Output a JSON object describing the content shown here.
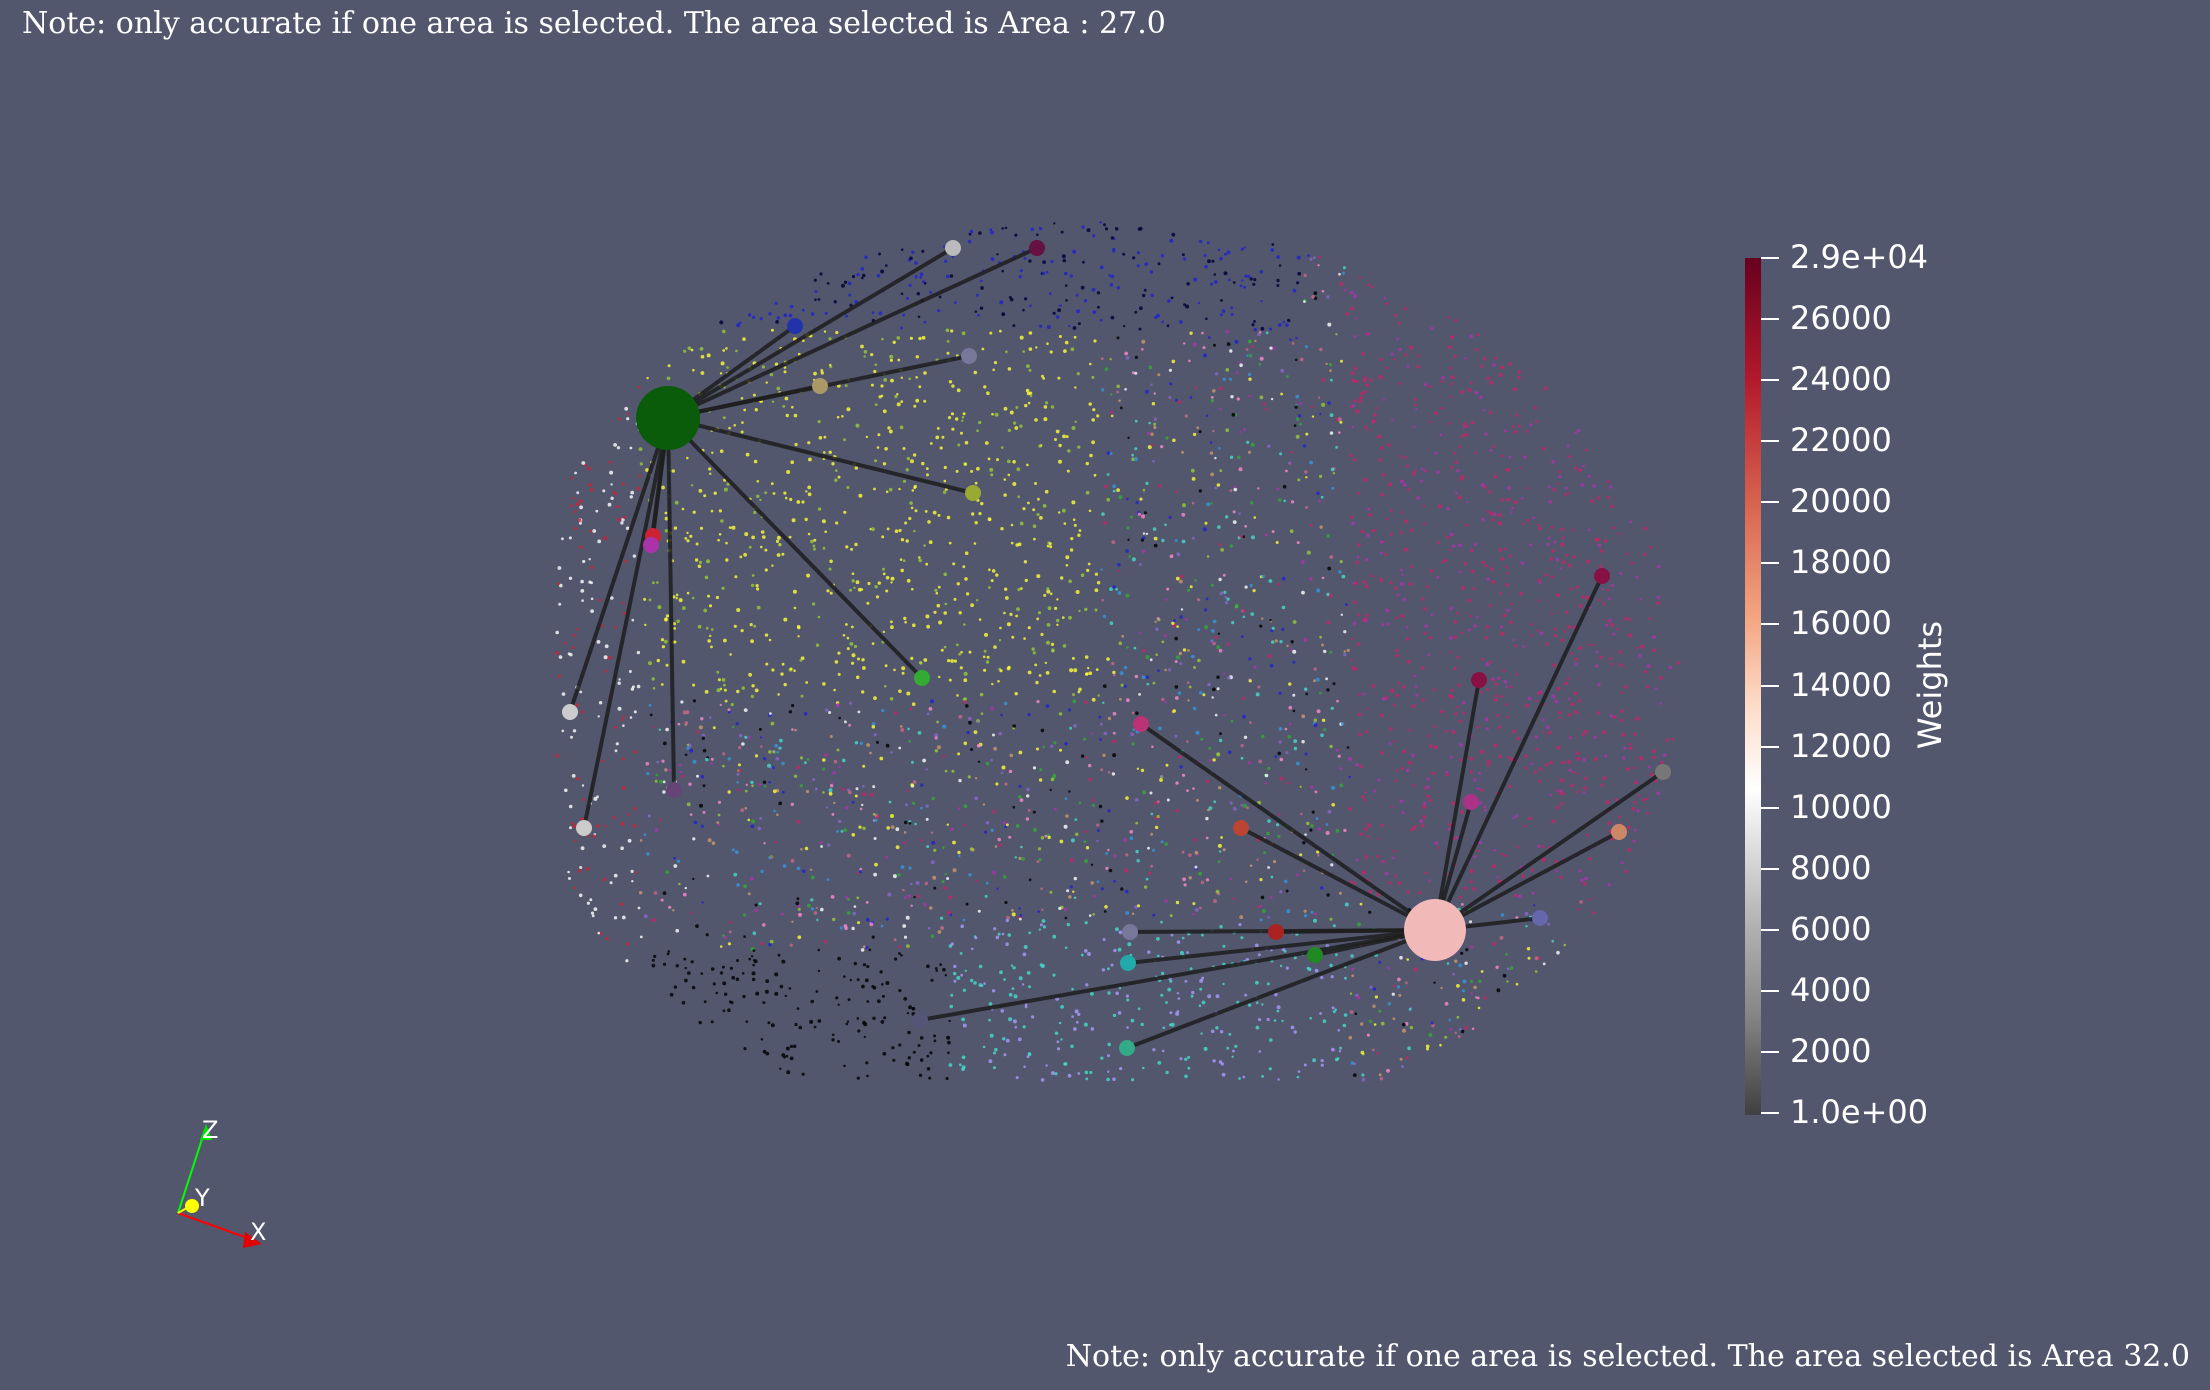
{
  "notes": {
    "top": "Note: only accurate if one area is selected. The area selected is Area : 27.0",
    "bottom": "Note: only accurate if one area is selected. The area selected is Area 32.0"
  },
  "colorbar": {
    "title": "Weights",
    "ticks": [
      "2.9e+04",
      "26000",
      "24000",
      "22000",
      "20000",
      "18000",
      "16000",
      "14000",
      "12000",
      "10000",
      "8000",
      "6000",
      "4000",
      "2000",
      "1.0e+00"
    ],
    "colors": [
      "#67001f",
      "#b2182b",
      "#d6604d",
      "#f4a582",
      "#fddbc7",
      "#ffffff",
      "#bababa",
      "#878787",
      "#404040"
    ]
  },
  "axes": {
    "x": "X",
    "y": "Y",
    "z": "Z"
  },
  "hubs": [
    {
      "name": "area-27",
      "color": "#0a5c0a"
    },
    {
      "name": "area-32",
      "color": "#f2b9b9"
    }
  ]
}
